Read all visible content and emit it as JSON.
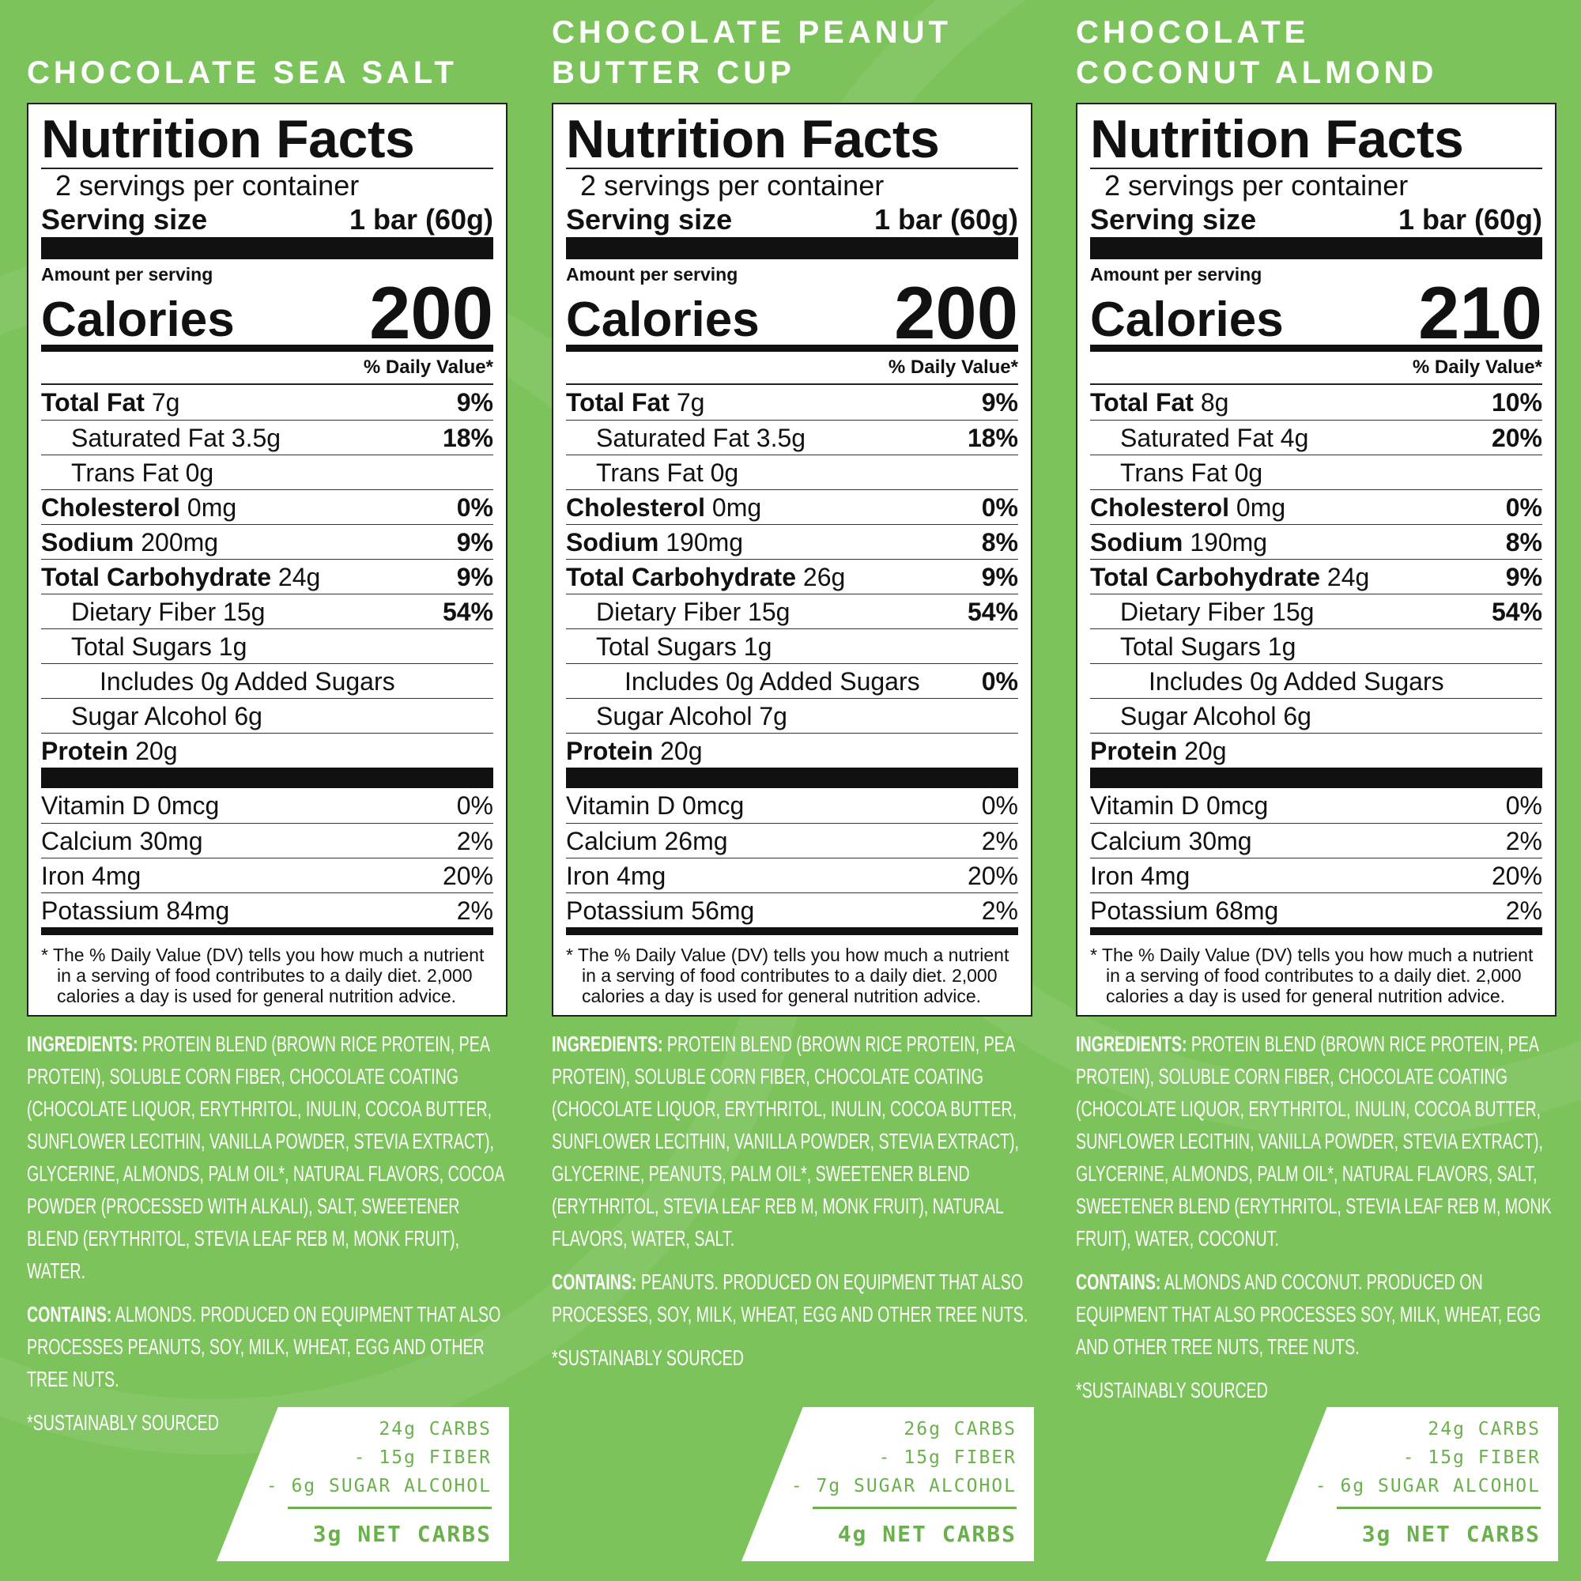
{
  "products": [
    {
      "name_lines": [
        "CHOCOLATE SEA SALT"
      ],
      "label": {
        "title": "Nutrition Facts",
        "servings": "2 servings per container",
        "serving_size_label": "Serving size",
        "serving_size": "1 bar (60g)",
        "amount_per_serving": "Amount per serving",
        "calories_label": "Calories",
        "calories": "200",
        "dv_header": "% Daily Value*",
        "nutrients": [
          {
            "name": "Total Fat",
            "amount": "7g",
            "dv": "9%",
            "sub": [
              {
                "name": "Saturated Fat",
                "amount": "3.5g",
                "dv": "18%"
              },
              {
                "name": "Trans Fat",
                "amount": "0g"
              }
            ]
          },
          {
            "name": "Cholesterol",
            "amount": "0mg",
            "dv": "0%"
          },
          {
            "name": "Sodium",
            "amount": "200mg",
            "dv": "9%"
          },
          {
            "name": "Total Carbohydrate",
            "amount": "24g",
            "dv": "9%",
            "sub": [
              {
                "name": "Dietary Fiber",
                "amount": "15g",
                "dv": "54%"
              },
              {
                "name": "Total Sugars",
                "amount": "1g",
                "sub": [
                  {
                    "name": "Includes 0g Added Sugars"
                  }
                ]
              },
              {
                "name": "Sugar Alcohol",
                "amount": "6g"
              }
            ]
          },
          {
            "name": "Protein",
            "amount": "20g"
          }
        ],
        "vitamins": [
          {
            "name": "Vitamin D 0mcg",
            "dv": "0%"
          },
          {
            "name": "Calcium 30mg",
            "dv": "2%"
          },
          {
            "name": "Iron 4mg",
            "dv": "20%"
          },
          {
            "name": "Potassium 84mg",
            "dv": "2%"
          }
        ],
        "footnote": "* The % Daily Value (DV) tells you how much a nutrient in a serving of food contributes to a daily diet. 2,000 calories a day is used for general nutrition advice."
      },
      "ingredients_label": "INGREDIENTS:",
      "ingredients": "PROTEIN BLEND (BROWN RICE PROTEIN, PEA PROTEIN), SOLUBLE CORN FIBER, CHOCOLATE COATING (CHOCOLATE LIQUOR, ERYTHRITOL, INULIN, COCOA BUTTER, SUNFLOWER LECITHIN, VANILLA POWDER, STEVIA EXTRACT), GLYCERINE, ALMONDS, PALM OIL*, NATURAL FLAVORS, COCOA POWDER (PROCESSED WITH ALKALI), SALT, SWEETENER BLEND (ERYTHRITOL, STEVIA LEAF REB M, MONK FRUIT), WATER.",
      "contains_label": "CONTAINS:",
      "contains": "ALMONDS. PRODUCED ON EQUIPMENT THAT ALSO PROCESSES PEANUTS, SOY, MILK, WHEAT, EGG AND OTHER TREE NUTS.",
      "sourced": "*SUSTAINABLY SOURCED",
      "net_carbs": {
        "lines": [
          "24g CARBS",
          "- 15g FIBER",
          "- 6g SUGAR ALCOHOL"
        ],
        "total": "3g NET CARBS"
      }
    },
    {
      "name_lines": [
        "CHOCOLATE PEANUT",
        "BUTTER CUP"
      ],
      "label": {
        "title": "Nutrition Facts",
        "servings": "2 servings per container",
        "serving_size_label": "Serving size",
        "serving_size": "1 bar (60g)",
        "amount_per_serving": "Amount per serving",
        "calories_label": "Calories",
        "calories": "200",
        "dv_header": "% Daily Value*",
        "nutrients": [
          {
            "name": "Total Fat",
            "amount": "7g",
            "dv": "9%",
            "sub": [
              {
                "name": "Saturated Fat",
                "amount": "3.5g",
                "dv": "18%"
              },
              {
                "name": "Trans Fat",
                "amount": "0g"
              }
            ]
          },
          {
            "name": "Cholesterol",
            "amount": "0mg",
            "dv": "0%"
          },
          {
            "name": "Sodium",
            "amount": "190mg",
            "dv": "8%"
          },
          {
            "name": "Total Carbohydrate",
            "amount": "26g",
            "dv": "9%",
            "sub": [
              {
                "name": "Dietary Fiber",
                "amount": "15g",
                "dv": "54%"
              },
              {
                "name": "Total Sugars",
                "amount": "1g",
                "sub": [
                  {
                    "name": "Includes 0g Added Sugars",
                    "dv": "0%"
                  }
                ]
              },
              {
                "name": "Sugar Alcohol",
                "amount": "7g"
              }
            ]
          },
          {
            "name": "Protein",
            "amount": "20g"
          }
        ],
        "vitamins": [
          {
            "name": "Vitamin D 0mcg",
            "dv": "0%"
          },
          {
            "name": "Calcium 26mg",
            "dv": "2%"
          },
          {
            "name": "Iron 4mg",
            "dv": "20%"
          },
          {
            "name": "Potassium 56mg",
            "dv": "2%"
          }
        ],
        "footnote": "* The % Daily Value (DV) tells you how much a nutrient in a serving of food contributes to a daily diet. 2,000 calories a day is used for general nutrition advice."
      },
      "ingredients_label": "INGREDIENTS:",
      "ingredients": "PROTEIN BLEND (BROWN RICE PROTEIN, PEA PROTEIN), SOLUBLE CORN FIBER, CHOCOLATE COATING (CHOCOLATE LIQUOR, ERYTHRITOL, INULIN, COCOA BUTTER, SUNFLOWER LECITHIN, VANILLA POWDER, STEVIA EXTRACT), GLYCERINE, PEANUTS, PALM OIL*, SWEETENER BLEND (ERYTHRITOL, STEVIA LEAF REB M, MONK FRUIT), NATURAL FLAVORS, WATER, SALT.",
      "contains_label": "CONTAINS:",
      "contains": "PEANUTS. PRODUCED ON EQUIPMENT THAT ALSO PROCESSES, SOY, MILK, WHEAT, EGG AND OTHER TREE NUTS.",
      "sourced": "*SUSTAINABLY SOURCED",
      "net_carbs": {
        "lines": [
          "26g CARBS",
          "- 15g FIBER",
          "- 7g SUGAR ALCOHOL"
        ],
        "total": "4g NET CARBS"
      }
    },
    {
      "name_lines": [
        "CHOCOLATE",
        "COCONUT ALMOND"
      ],
      "label": {
        "title": "Nutrition Facts",
        "servings": "2 servings per container",
        "serving_size_label": "Serving size",
        "serving_size": "1 bar (60g)",
        "amount_per_serving": "Amount per serving",
        "calories_label": "Calories",
        "calories": "210",
        "dv_header": "% Daily Value*",
        "nutrients": [
          {
            "name": "Total Fat",
            "amount": "8g",
            "dv": "10%",
            "sub": [
              {
                "name": "Saturated Fat",
                "amount": "4g",
                "dv": "20%"
              },
              {
                "name": "Trans Fat",
                "amount": "0g"
              }
            ]
          },
          {
            "name": "Cholesterol",
            "amount": "0mg",
            "dv": "0%"
          },
          {
            "name": "Sodium",
            "amount": "190mg",
            "dv": "8%"
          },
          {
            "name": "Total Carbohydrate",
            "amount": "24g",
            "dv": "9%",
            "sub": [
              {
                "name": "Dietary Fiber",
                "amount": "15g",
                "dv": "54%"
              },
              {
                "name": "Total Sugars",
                "amount": "1g",
                "sub": [
                  {
                    "name": "Includes 0g Added Sugars"
                  }
                ]
              },
              {
                "name": "Sugar Alcohol",
                "amount": "6g"
              }
            ]
          },
          {
            "name": "Protein",
            "amount": "20g"
          }
        ],
        "vitamins": [
          {
            "name": "Vitamin D 0mcg",
            "dv": "0%"
          },
          {
            "name": "Calcium 30mg",
            "dv": "2%"
          },
          {
            "name": "Iron 4mg",
            "dv": "20%"
          },
          {
            "name": "Potassium 68mg",
            "dv": "2%"
          }
        ],
        "footnote": "* The % Daily Value (DV) tells you how much a nutrient in a serving of food contributes to a daily diet. 2,000 calories a day is used for general nutrition advice."
      },
      "ingredients_label": "INGREDIENTS:",
      "ingredients": "PROTEIN BLEND (BROWN RICE PROTEIN, PEA PROTEIN), SOLUBLE CORN FIBER, CHOCOLATE COATING (CHOCOLATE LIQUOR, ERYTHRITOL, INULIN, COCOA BUTTER, SUNFLOWER LECITHIN, VANILLA POWDER, STEVIA EXTRACT), GLYCERINE, ALMONDS, PALM OIL*, NATURAL FLAVORS, SALT, SWEETENER BLEND (ERYTHRITOL, STEVIA LEAF REB M, MONK FRUIT), WATER, COCONUT.",
      "contains_label": "CONTAINS:",
      "contains": "ALMONDS AND COCONUT. PRODUCED ON EQUIPMENT THAT ALSO PROCESSES SOY, MILK, WHEAT, EGG AND OTHER TREE NUTS, TREE NUTS.",
      "sourced": "*SUSTAINABLY SOURCED",
      "net_carbs": {
        "lines": [
          "24g CARBS",
          "- 15g FIBER",
          "- 6g SUGAR ALCOHOL"
        ],
        "total": "3g NET CARBS"
      }
    }
  ]
}
